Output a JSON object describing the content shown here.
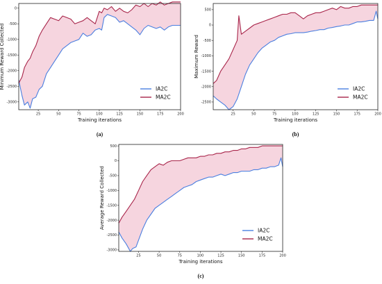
{
  "colors": {
    "ia2c": "#4a7fe0",
    "ma2c": "#a8254a",
    "band": "#f6d5df"
  },
  "chart_data": [
    {
      "type": "line",
      "caption": "(a)",
      "xlabel": "Training iterations",
      "ylabel": "Minimum Reward Collected",
      "xlim": [
        1,
        200
      ],
      "ylim": [
        -3250,
        150
      ],
      "xticks": [
        "25",
        "50",
        "75",
        "100",
        "125",
        "150",
        "175",
        "200"
      ],
      "yticks": [
        "0",
        "-500",
        "-1000",
        "-1500",
        "-2000",
        "-2500",
        "-3000"
      ],
      "legend": "lower-right",
      "shaded_between_series": true,
      "series": [
        {
          "name": "IA2C",
          "x": [
            1,
            5,
            8,
            12,
            15,
            18,
            22,
            26,
            30,
            35,
            40,
            45,
            50,
            55,
            60,
            65,
            70,
            75,
            80,
            85,
            90,
            95,
            100,
            103,
            106,
            110,
            115,
            120,
            125,
            130,
            135,
            140,
            145,
            150,
            155,
            160,
            165,
            170,
            175,
            180,
            185,
            190,
            195,
            200
          ],
          "values": [
            -2300,
            -2800,
            -3100,
            -3000,
            -3200,
            -2900,
            -2850,
            -2600,
            -2500,
            -2100,
            -1900,
            -1700,
            -1500,
            -1300,
            -1200,
            -1100,
            -1050,
            -1000,
            -800,
            -900,
            -850,
            -700,
            -650,
            -700,
            -300,
            -200,
            -250,
            -300,
            -450,
            -400,
            -500,
            -600,
            -700,
            -850,
            -650,
            -550,
            -600,
            -650,
            -600,
            -700,
            -600,
            -550,
            -550,
            -550
          ]
        },
        {
          "name": "MA2C",
          "x": [
            1,
            5,
            8,
            12,
            15,
            18,
            22,
            26,
            30,
            35,
            40,
            45,
            50,
            55,
            60,
            65,
            70,
            75,
            80,
            85,
            90,
            95,
            100,
            103,
            106,
            110,
            115,
            120,
            125,
            130,
            135,
            140,
            145,
            150,
            155,
            160,
            165,
            170,
            175,
            180,
            185,
            190,
            195,
            200
          ],
          "values": [
            -2400,
            -2200,
            -1900,
            -1700,
            -1600,
            -1400,
            -1200,
            -900,
            -700,
            -500,
            -300,
            -350,
            -400,
            -250,
            -300,
            -350,
            -500,
            -450,
            -400,
            -300,
            -400,
            -500,
            -100,
            -150,
            0,
            -50,
            50,
            -100,
            0,
            -100,
            -150,
            -50,
            100,
            50,
            150,
            50,
            150,
            100,
            200,
            100,
            150,
            200,
            200,
            200
          ]
        }
      ]
    },
    {
      "type": "line",
      "caption": "(b)",
      "xlabel": "Training iterations",
      "ylabel": "Maximum Reward",
      "xlim": [
        1,
        200
      ],
      "ylim": [
        -2750,
        700
      ],
      "xticks": [
        "25",
        "50",
        "75",
        "100",
        "125",
        "150",
        "175",
        "200"
      ],
      "yticks": [
        "500",
        "0",
        "-500",
        "-1000",
        "-1500",
        "-2000",
        "-2500"
      ],
      "legend": "lower-right",
      "shaded_between_series": true,
      "series": [
        {
          "name": "IA2C",
          "x": [
            1,
            5,
            10,
            15,
            20,
            25,
            30,
            35,
            40,
            45,
            50,
            55,
            60,
            65,
            70,
            75,
            80,
            85,
            90,
            95,
            100,
            105,
            110,
            115,
            120,
            125,
            130,
            135,
            140,
            145,
            150,
            155,
            160,
            165,
            170,
            175,
            180,
            185,
            190,
            195,
            198,
            200
          ],
          "values": [
            -2300,
            -2400,
            -2500,
            -2600,
            -2750,
            -2650,
            -2400,
            -2000,
            -1600,
            -1300,
            -1100,
            -900,
            -750,
            -650,
            -550,
            -500,
            -400,
            -350,
            -300,
            -280,
            -250,
            -250,
            -250,
            -230,
            -200,
            -180,
            -150,
            -150,
            -100,
            -80,
            -50,
            -30,
            0,
            0,
            50,
            100,
            100,
            120,
            150,
            150,
            450,
            200
          ]
        },
        {
          "name": "MA2C",
          "x": [
            1,
            5,
            10,
            15,
            20,
            25,
            30,
            32,
            35,
            40,
            45,
            50,
            55,
            60,
            65,
            70,
            75,
            80,
            85,
            90,
            95,
            100,
            105,
            110,
            115,
            120,
            125,
            130,
            135,
            140,
            145,
            150,
            155,
            160,
            165,
            170,
            175,
            180,
            185,
            190,
            195,
            200
          ],
          "values": [
            -1900,
            -1800,
            -1500,
            -1300,
            -1100,
            -800,
            -500,
            300,
            -300,
            -200,
            -100,
            0,
            50,
            100,
            150,
            200,
            250,
            300,
            350,
            350,
            400,
            400,
            300,
            200,
            300,
            350,
            400,
            400,
            450,
            500,
            550,
            500,
            600,
            550,
            550,
            600,
            600,
            650,
            650,
            650,
            650,
            650
          ]
        }
      ]
    },
    {
      "type": "line",
      "caption": "(c)",
      "xlabel": "Training iterations",
      "ylabel": "Average Reward Collected",
      "xlim": [
        1,
        200
      ],
      "ylim": [
        -3050,
        550
      ],
      "xticks": [
        "25",
        "50",
        "75",
        "100",
        "125",
        "150",
        "175",
        "200"
      ],
      "yticks": [
        "500",
        "0",
        "-500",
        "-1000",
        "-1500",
        "-2000",
        "-2500",
        "-3000"
      ],
      "legend": "lower-right",
      "shaded_between_series": true,
      "series": [
        {
          "name": "IA2C",
          "x": [
            1,
            5,
            10,
            15,
            18,
            22,
            26,
            30,
            35,
            40,
            45,
            50,
            55,
            60,
            65,
            70,
            75,
            80,
            85,
            90,
            95,
            100,
            105,
            110,
            115,
            120,
            125,
            130,
            135,
            140,
            145,
            150,
            155,
            160,
            165,
            170,
            175,
            180,
            185,
            190,
            195,
            198,
            200
          ],
          "values": [
            -2400,
            -2600,
            -2800,
            -3050,
            -2950,
            -2900,
            -2600,
            -2300,
            -2000,
            -1800,
            -1600,
            -1500,
            -1400,
            -1300,
            -1200,
            -1100,
            -1000,
            -900,
            -850,
            -800,
            -700,
            -650,
            -600,
            -550,
            -550,
            -500,
            -450,
            -500,
            -450,
            -400,
            -400,
            -350,
            -350,
            -350,
            -300,
            -300,
            -250,
            -250,
            -200,
            -200,
            -150,
            100,
            -200
          ]
        },
        {
          "name": "MA2C",
          "x": [
            1,
            5,
            10,
            15,
            20,
            25,
            30,
            35,
            40,
            45,
            50,
            55,
            60,
            65,
            70,
            75,
            80,
            85,
            90,
            95,
            100,
            105,
            110,
            115,
            120,
            125,
            130,
            135,
            140,
            145,
            150,
            155,
            160,
            165,
            170,
            175,
            180,
            185,
            190,
            195,
            200
          ],
          "values": [
            -2100,
            -1900,
            -1700,
            -1500,
            -1300,
            -1000,
            -700,
            -500,
            -300,
            -200,
            -100,
            -150,
            -50,
            0,
            0,
            0,
            50,
            100,
            100,
            100,
            150,
            150,
            200,
            200,
            250,
            250,
            300,
            300,
            350,
            350,
            400,
            400,
            450,
            450,
            450,
            500,
            500,
            500,
            500,
            500,
            500
          ]
        }
      ]
    }
  ]
}
